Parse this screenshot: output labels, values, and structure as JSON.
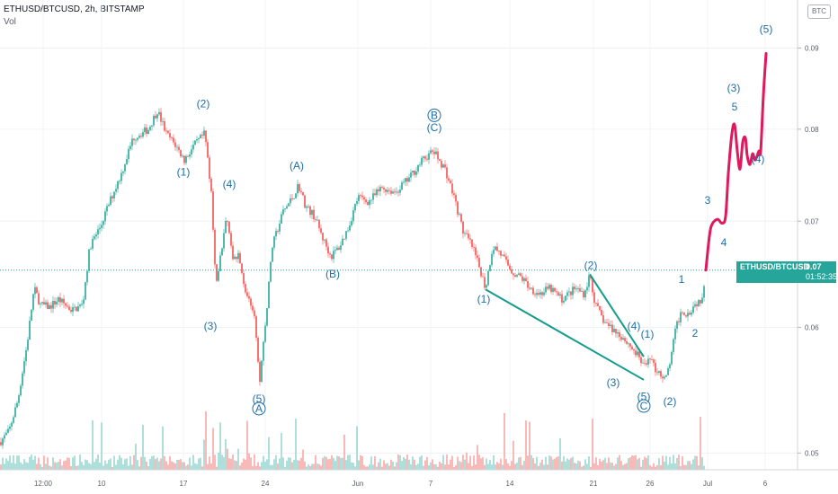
{
  "header": {
    "title": "ETHUSD/BTCUSD, 2h, BITSTAMP",
    "indicator": "Vol"
  },
  "currency_badge": "BTC",
  "last_price": {
    "symbol": "ETHUSD/BTCUSD",
    "value": "0.07",
    "countdown": "01:52:35"
  },
  "colors": {
    "up": "#26a69a",
    "down": "#ef5350",
    "vol_up": "#9ad7d1",
    "vol_down": "#f7a9a7",
    "wave_label": "#1f6fa8",
    "projection": "#e0185c",
    "channel": "#149c8c"
  },
  "chart_data": {
    "type": "candlestick",
    "title": "ETHUSD/BTCUSD, 2h, BITSTAMP",
    "yscale": "log",
    "ylim": [
      0.0488,
      0.0955
    ],
    "x_tick_labels": [
      "12:00",
      "10",
      "17",
      "24",
      "Jun",
      "7",
      "14",
      "21",
      "26",
      "Jul",
      "6"
    ],
    "y_tick_labels": [
      "0.05",
      "0.06",
      "0.07",
      "0.08",
      "0.09"
    ],
    "price_path": [
      [
        0,
        0.0508
      ],
      [
        10,
        0.0516
      ],
      [
        20,
        0.054
      ],
      [
        30,
        0.0585
      ],
      [
        38,
        0.0635
      ],
      [
        45,
        0.062
      ],
      [
        55,
        0.0618
      ],
      [
        65,
        0.0625
      ],
      [
        80,
        0.0615
      ],
      [
        92,
        0.062
      ],
      [
        100,
        0.0675
      ],
      [
        112,
        0.0695
      ],
      [
        122,
        0.072
      ],
      [
        135,
        0.075
      ],
      [
        148,
        0.079
      ],
      [
        165,
        0.08
      ],
      [
        175,
        0.0822
      ],
      [
        185,
        0.0795
      ],
      [
        195,
        0.0782
      ],
      [
        205,
        0.0765
      ],
      [
        215,
        0.078
      ],
      [
        228,
        0.0795
      ],
      [
        235,
        0.073
      ],
      [
        240,
        0.0635
      ],
      [
        245,
        0.0665
      ],
      [
        252,
        0.0705
      ],
      [
        258,
        0.0665
      ],
      [
        265,
        0.0665
      ],
      [
        275,
        0.0625
      ],
      [
        282,
        0.0615
      ],
      [
        289,
        0.0555
      ],
      [
        296,
        0.061
      ],
      [
        303,
        0.0675
      ],
      [
        315,
        0.071
      ],
      [
        326,
        0.0725
      ],
      [
        332,
        0.0738
      ],
      [
        340,
        0.0715
      ],
      [
        350,
        0.0705
      ],
      [
        358,
        0.0685
      ],
      [
        368,
        0.0665
      ],
      [
        378,
        0.0675
      ],
      [
        388,
        0.0695
      ],
      [
        398,
        0.0725
      ],
      [
        410,
        0.072
      ],
      [
        425,
        0.0735
      ],
      [
        440,
        0.073
      ],
      [
        455,
        0.0745
      ],
      [
        470,
        0.0765
      ],
      [
        482,
        0.0775
      ],
      [
        495,
        0.0755
      ],
      [
        505,
        0.0725
      ],
      [
        515,
        0.069
      ],
      [
        525,
        0.0675
      ],
      [
        535,
        0.065
      ],
      [
        540,
        0.0635
      ],
      [
        548,
        0.0675
      ],
      [
        555,
        0.067
      ],
      [
        570,
        0.065
      ],
      [
        580,
        0.0645
      ],
      [
        590,
        0.0635
      ],
      [
        600,
        0.063
      ],
      [
        612,
        0.0635
      ],
      [
        625,
        0.0625
      ],
      [
        640,
        0.0635
      ],
      [
        650,
        0.063
      ],
      [
        656,
        0.0648
      ],
      [
        662,
        0.062
      ],
      [
        672,
        0.0605
      ],
      [
        682,
        0.0598
      ],
      [
        692,
        0.0592
      ],
      [
        700,
        0.0585
      ],
      [
        710,
        0.0575
      ],
      [
        718,
        0.0565
      ],
      [
        722,
        0.0578
      ],
      [
        728,
        0.0565
      ],
      [
        733,
        0.0563
      ],
      [
        740,
        0.0555
      ],
      [
        745,
        0.057
      ],
      [
        752,
        0.06
      ],
      [
        758,
        0.0615
      ],
      [
        765,
        0.0612
      ],
      [
        772,
        0.062
      ],
      [
        780,
        0.0625
      ],
      [
        785,
        0.065
      ]
    ],
    "wave_labels": [
      {
        "text": "(2)",
        "x": 226,
        "y": 0.0826
      },
      {
        "text": "(1)",
        "x": 204,
        "y": 0.0748
      },
      {
        "text": "(4)",
        "x": 255,
        "y": 0.0735
      },
      {
        "text": "(3)",
        "x": 234,
        "y": 0.0598
      },
      {
        "text": "(5)",
        "x": 288,
        "y": 0.0538
      },
      {
        "text": "A",
        "x": 288,
        "y": 0.05305,
        "circled": true
      },
      {
        "text": "(A)",
        "x": 330,
        "y": 0.0755
      },
      {
        "text": "(B)",
        "x": 370,
        "y": 0.0645
      },
      {
        "text": "B",
        "x": 483,
        "y": 0.0812,
        "circled": true
      },
      {
        "text": "(C)",
        "x": 483,
        "y": 0.0798
      },
      {
        "text": "(1)",
        "x": 538,
        "y": 0.0622
      },
      {
        "text": "(2)",
        "x": 657,
        "y": 0.0653
      },
      {
        "text": "(4)",
        "x": 705,
        "y": 0.0598
      },
      {
        "text": "(1)",
        "x": 720,
        "y": 0.0591
      },
      {
        "text": "(3)",
        "x": 682,
        "y": 0.0551
      },
      {
        "text": "(5)",
        "x": 716,
        "y": 0.054
      },
      {
        "text": "C",
        "x": 716,
        "y": 0.05325,
        "circled": true
      },
      {
        "text": "(2)",
        "x": 745,
        "y": 0.0536
      },
      {
        "text": "1",
        "x": 758,
        "y": 0.064
      },
      {
        "text": "2",
        "x": 773,
        "y": 0.0592
      },
      {
        "text": "3",
        "x": 787,
        "y": 0.0718
      },
      {
        "text": "4",
        "x": 805,
        "y": 0.0675
      },
      {
        "text": "(3)",
        "x": 816,
        "y": 0.0845
      },
      {
        "text": "5",
        "x": 817,
        "y": 0.0822
      },
      {
        "text": "(4)",
        "x": 843,
        "y": 0.0762
      },
      {
        "text": "(5)",
        "x": 852,
        "y": 0.092
      }
    ],
    "projection_path": [
      [
        785,
        0.0652
      ],
      [
        789,
        0.0685
      ],
      [
        792,
        0.0697
      ],
      [
        798,
        0.0702
      ],
      [
        803,
        0.0698
      ],
      [
        807,
        0.0705
      ],
      [
        810,
        0.075
      ],
      [
        814,
        0.0795
      ],
      [
        817,
        0.0805
      ],
      [
        820,
        0.0775
      ],
      [
        823,
        0.0755
      ],
      [
        826,
        0.0785
      ],
      [
        829,
        0.079
      ],
      [
        831,
        0.077
      ],
      [
        834,
        0.076
      ],
      [
        837,
        0.0772
      ],
      [
        840,
        0.0765
      ],
      [
        844,
        0.0775
      ],
      [
        846,
        0.0775
      ],
      [
        849,
        0.084
      ],
      [
        852,
        0.0893
      ]
    ],
    "trendlines": [
      {
        "x1": 540,
        "y1": 0.0634,
        "x2": 716,
        "y2": 0.0556
      },
      {
        "x1": 656,
        "y1": 0.0648,
        "x2": 716,
        "y2": 0.0575
      }
    ],
    "last_close": 0.0652
  }
}
